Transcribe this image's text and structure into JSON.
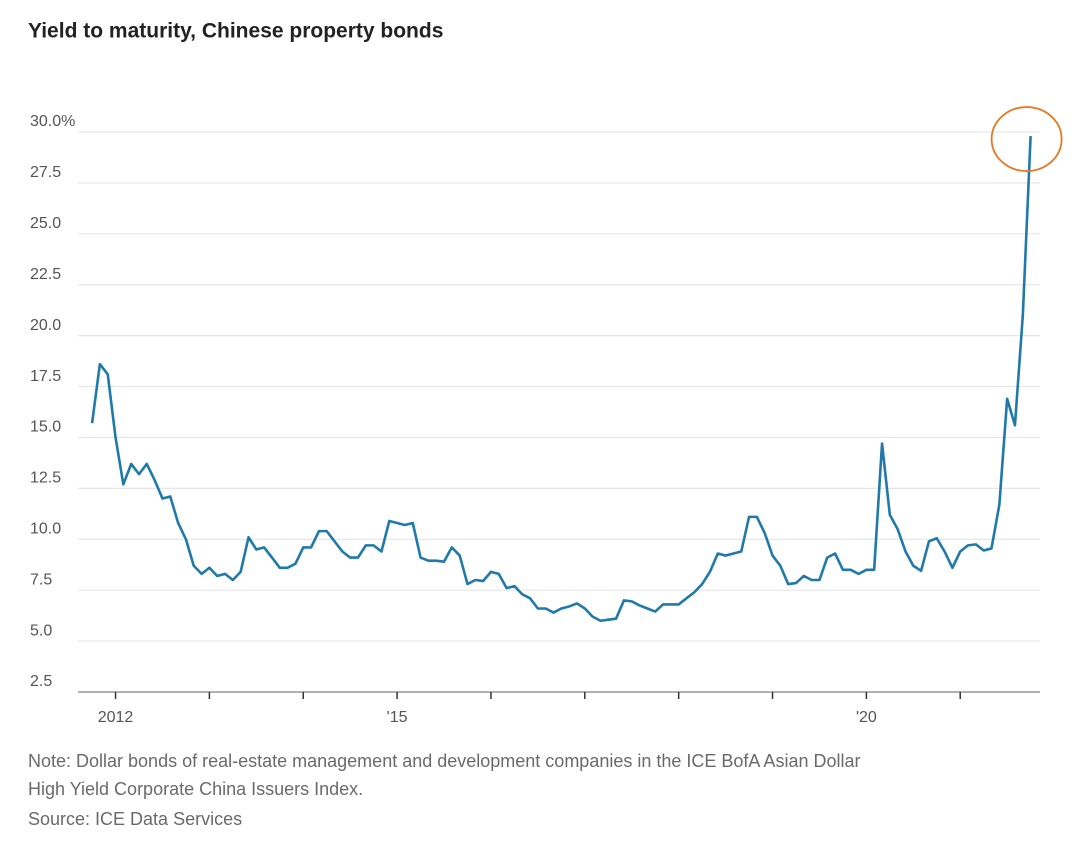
{
  "chart_data": {
    "type": "line",
    "title": "Yield to maturity, Chinese property bonds",
    "note": "Note: Dollar bonds of real-estate management and development companies in the ICE BofA Asian Dollar High Yield Corporate China Issuers Index.",
    "source": "Source: ICE Data Services",
    "xlim": [
      2011.6,
      2021.85
    ],
    "xticks": [
      {
        "value": 2012,
        "label": "2012"
      },
      {
        "value": 2015,
        "label": "'15"
      },
      {
        "value": 2020,
        "label": "'20"
      }
    ],
    "xminorticks": [
      2013,
      2014,
      2016,
      2017,
      2018,
      2019,
      2021
    ],
    "ylim": [
      2.5,
      30
    ],
    "yticks": [
      {
        "value": 30,
        "label": "30.0%"
      },
      27.5,
      {
        "value": 25,
        "label": "25.0"
      },
      22.5,
      {
        "value": 20,
        "label": "20.0"
      },
      17.5,
      {
        "value": 15,
        "label": "15.0"
      },
      12.5,
      {
        "value": 10,
        "label": "10.0"
      },
      7.5,
      {
        "value": 5,
        "label": "5.0"
      },
      2.5
    ],
    "grid": true,
    "x": [
      2011.75,
      2011.833,
      2011.917,
      2012,
      2012.083,
      2012.167,
      2012.25,
      2012.333,
      2012.417,
      2012.5,
      2012.583,
      2012.667,
      2012.75,
      2012.833,
      2012.917,
      2013,
      2013.083,
      2013.167,
      2013.25,
      2013.333,
      2013.417,
      2013.5,
      2013.583,
      2013.667,
      2013.75,
      2013.833,
      2013.917,
      2014,
      2014.083,
      2014.167,
      2014.25,
      2014.333,
      2014.417,
      2014.5,
      2014.583,
      2014.667,
      2014.75,
      2014.833,
      2014.917,
      2015,
      2015.083,
      2015.167,
      2015.25,
      2015.333,
      2015.417,
      2015.5,
      2015.583,
      2015.667,
      2015.75,
      2015.833,
      2015.917,
      2016,
      2016.083,
      2016.167,
      2016.25,
      2016.333,
      2016.417,
      2016.5,
      2016.583,
      2016.667,
      2016.75,
      2016.833,
      2016.917,
      2017,
      2017.083,
      2017.167,
      2017.25,
      2017.333,
      2017.417,
      2017.5,
      2017.583,
      2017.667,
      2017.75,
      2017.833,
      2017.917,
      2018,
      2018.083,
      2018.167,
      2018.25,
      2018.333,
      2018.417,
      2018.5,
      2018.583,
      2018.667,
      2018.75,
      2018.833,
      2018.917,
      2019,
      2019.083,
      2019.167,
      2019.25,
      2019.333,
      2019.417,
      2019.5,
      2019.583,
      2019.667,
      2019.75,
      2019.833,
      2019.917,
      2020,
      2020.083,
      2020.167,
      2020.25,
      2020.333,
      2020.417,
      2020.5,
      2020.583,
      2020.667,
      2020.75,
      2020.833,
      2020.917,
      2021,
      2021.083,
      2021.167,
      2021.25,
      2021.333,
      2021.417,
      2021.5,
      2021.583,
      2021.667,
      2021.75
    ],
    "series": [
      {
        "name": "Yield to maturity",
        "color": "#1f7aaa",
        "values": [
          15.7,
          18.6,
          18.1,
          15.0,
          12.7,
          13.7,
          13.2,
          13.7,
          12.9,
          12.0,
          12.1,
          10.8,
          10.0,
          8.7,
          8.3,
          8.6,
          8.2,
          8.3,
          8.0,
          8.4,
          10.1,
          9.5,
          9.6,
          9.1,
          8.6,
          8.6,
          8.8,
          9.6,
          9.6,
          10.4,
          10.4,
          9.9,
          9.4,
          9.1,
          9.1,
          9.7,
          9.7,
          9.4,
          10.9,
          10.8,
          10.7,
          10.8,
          9.1,
          8.95,
          8.95,
          8.9,
          9.6,
          9.2,
          7.8,
          8.0,
          7.95,
          8.4,
          8.3,
          7.6,
          7.7,
          7.3,
          7.1,
          6.6,
          6.6,
          6.4,
          6.6,
          6.7,
          6.85,
          6.6,
          6.2,
          6.0,
          6.05,
          6.1,
          7.0,
          6.95,
          6.75,
          6.6,
          6.45,
          6.8,
          6.8,
          6.8,
          7.1,
          7.4,
          7.8,
          8.4,
          9.3,
          9.2,
          9.3,
          9.4,
          11.1,
          11.1,
          10.3,
          9.2,
          8.7,
          7.8,
          7.85,
          8.2,
          8.0,
          8.0,
          9.1,
          9.3,
          8.5,
          8.5,
          8.3,
          8.5,
          8.5,
          14.7,
          11.2,
          10.5,
          9.4,
          8.7,
          8.45,
          9.9,
          10.05,
          9.4,
          8.6,
          9.4,
          9.7,
          9.75,
          9.45,
          9.55,
          11.7,
          16.9,
          15.6,
          21.0,
          29.8
        ]
      }
    ]
  }
}
